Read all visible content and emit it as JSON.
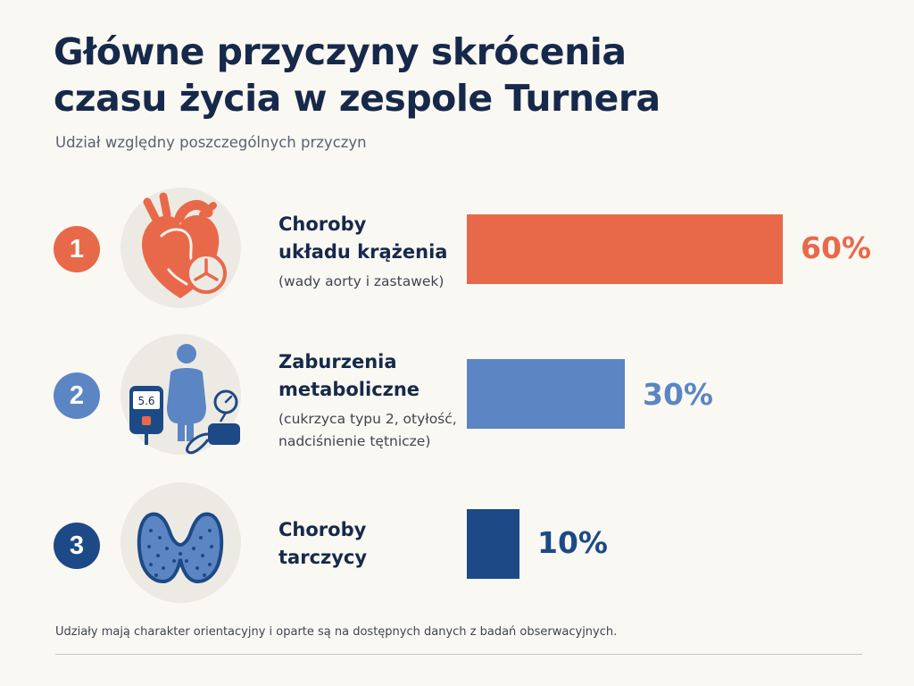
{
  "title_lines": [
    "Główne przyczyny skrócenia",
    "czasu życia w zespole Turnera"
  ],
  "subtitle": "Udział względny poszczególnych przyczyn",
  "footnote": "Udziały mają charakter orientacyjny i oparte są na dostępnych danych z badań obserwacyjnych.",
  "colors": {
    "background": "#faf8f3",
    "title": "#16294a",
    "cardiovascular": "#e8694a",
    "metabolic": "#5b86c3",
    "thyroid": "#1d4a86"
  },
  "causes": [
    {
      "rank": "1",
      "title_lines": [
        "Choroby",
        "układu krążenia"
      ],
      "desc_lines": [
        "(wady aorty i zastawek)"
      ],
      "icon": "heart-clock-icon",
      "value_label": "60%",
      "color_key": "cardiovascular"
    },
    {
      "rank": "2",
      "title_lines": [
        "Zaburzenia",
        "metaboliczne"
      ],
      "desc_lines": [
        "(cukrzyca typu 2, otyłość,",
        "nadciśnienie tętnicze)"
      ],
      "icon": "glucometer-figure-blood-pressure-icon",
      "glucometer_reading": "5.6",
      "value_label": "30%",
      "color_key": "metabolic"
    },
    {
      "rank": "3",
      "title_lines": [
        "Choroby",
        "tarczycy"
      ],
      "desc_lines": [],
      "icon": "thyroid-icon",
      "value_label": "10%",
      "color_key": "thyroid"
    }
  ],
  "chart_data": {
    "type": "bar",
    "orientation": "horizontal",
    "categories": [
      "Choroby układu krążenia",
      "Zaburzenia metaboliczne",
      "Choroby tarczycy"
    ],
    "values": [
      60,
      30,
      10
    ],
    "value_labels": [
      "60%",
      "30%",
      "10%"
    ],
    "xlim": [
      0,
      60
    ],
    "grid": false,
    "legend": "none"
  }
}
